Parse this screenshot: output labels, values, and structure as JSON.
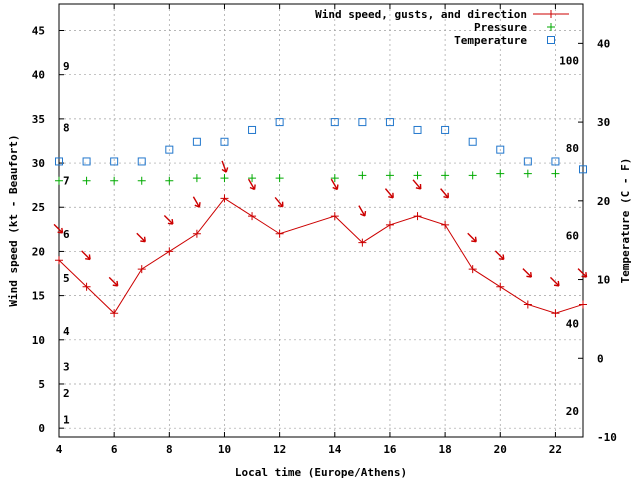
{
  "chart_data": {
    "type": "line",
    "title": "",
    "xlabel": "Local time (Europe/Athens)",
    "ylabel_left": "Wind speed (kt - Beaufort)",
    "ylabel_right": "Temperature (C - F)",
    "x_ticks": [
      4,
      6,
      8,
      10,
      12,
      14,
      16,
      18,
      20,
      22
    ],
    "xlim": [
      4,
      23
    ],
    "y_left_lim": [
      -1,
      48
    ],
    "y_left_ticks": [
      0,
      5,
      10,
      15,
      20,
      25,
      30,
      35,
      40,
      45
    ],
    "y_right_lim": [
      -10,
      45
    ],
    "y_right_ticks": [
      -10,
      0,
      10,
      20,
      30,
      40
    ],
    "beaufort_labels": [
      {
        "label": "1",
        "kt": 1
      },
      {
        "label": "2",
        "kt": 4
      },
      {
        "label": "3",
        "kt": 7
      },
      {
        "label": "4",
        "kt": 11
      },
      {
        "label": "5",
        "kt": 17
      },
      {
        "label": "6",
        "kt": 22
      },
      {
        "label": "7",
        "kt": 28
      },
      {
        "label": "8",
        "kt": 34
      },
      {
        "label": "9",
        "kt": 41
      }
    ],
    "fahrenheit_labels": [
      {
        "label": "20",
        "c": -6.7
      },
      {
        "label": "40",
        "c": 4.4
      },
      {
        "label": "60",
        "c": 15.6
      },
      {
        "label": "80",
        "c": 26.7
      },
      {
        "label": "100",
        "c": 37.8
      }
    ],
    "grid": true,
    "legend_position": "top-right",
    "series": [
      {
        "name": "Wind speed, gusts, and direction",
        "color": "#cc0000",
        "marker": "plus",
        "axis": "left",
        "x": [
          4,
          5,
          6,
          7,
          8,
          9,
          10,
          11,
          12,
          14,
          15,
          16,
          17,
          18,
          19,
          20,
          21,
          22,
          23
        ],
        "y": [
          19,
          16,
          13,
          18,
          20,
          22,
          26,
          24,
          22,
          24,
          21,
          23,
          24,
          23,
          18,
          16,
          14,
          13,
          14
        ]
      },
      {
        "name": "Pressure",
        "color": "#00aa00",
        "marker": "plus",
        "axis": "left",
        "x": [
          4,
          5,
          6,
          7,
          8,
          9,
          10,
          11,
          12,
          14,
          15,
          16,
          17,
          18,
          19,
          20,
          21,
          22
        ],
        "y": [
          28,
          28,
          28,
          28,
          28,
          28.3,
          28.3,
          28.3,
          28.3,
          28.3,
          28.6,
          28.6,
          28.6,
          28.6,
          28.6,
          28.8,
          28.8,
          28.8
        ]
      },
      {
        "name": "Temperature",
        "color": "#2277cc",
        "marker": "square",
        "axis": "right",
        "x": [
          4,
          5,
          6,
          7,
          8,
          9,
          10,
          11,
          12,
          14,
          15,
          16,
          17,
          18,
          19,
          20,
          21,
          22,
          23
        ],
        "y": [
          25,
          25,
          25,
          25,
          26.5,
          27.5,
          27.5,
          29,
          30,
          30,
          30,
          30,
          29,
          29,
          27.5,
          26.5,
          25,
          25,
          24
        ]
      }
    ],
    "wind_direction_arrows": {
      "color": "#cc0000",
      "x": [
        4,
        5,
        6,
        7,
        8,
        9,
        10,
        11,
        12,
        14,
        15,
        16,
        17,
        18,
        19,
        20,
        21,
        22,
        23
      ],
      "y": [
        22.5,
        19.5,
        16.5,
        21.5,
        23.5,
        25.5,
        29.5,
        27.5,
        25.5,
        27.5,
        24.5,
        26.5,
        27.5,
        26.5,
        21.5,
        19.5,
        17.5,
        16.5,
        17.5
      ],
      "direction_deg": [
        315,
        315,
        315,
        315,
        315,
        330,
        340,
        330,
        320,
        330,
        330,
        320,
        320,
        320,
        315,
        315,
        315,
        315,
        315
      ]
    }
  }
}
